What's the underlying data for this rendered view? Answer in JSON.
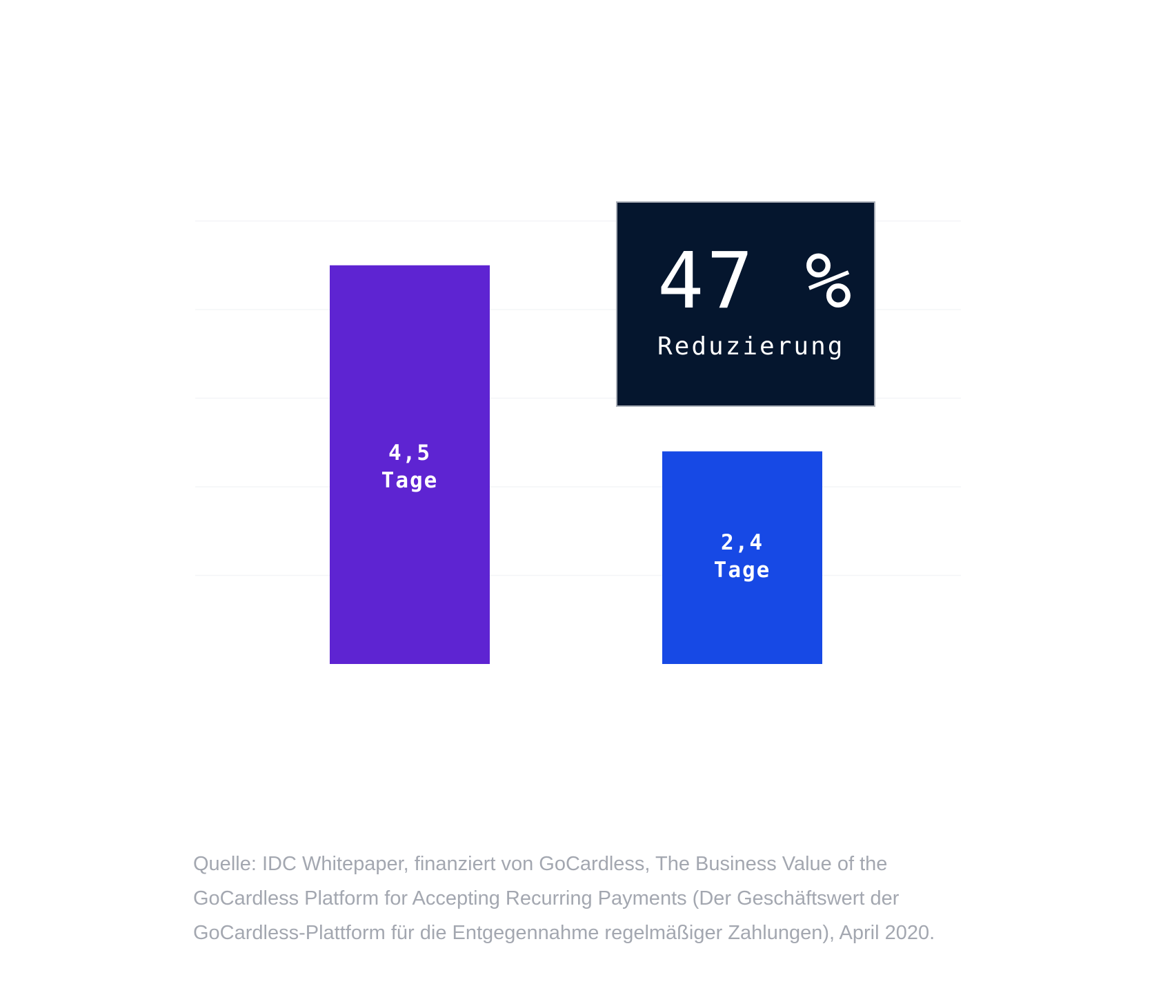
{
  "colors": {
    "background": "#ffffff",
    "grid": "#f4f5f7",
    "callout_background": "#05162e",
    "callout_border": "#a8adb6",
    "label_text": "#ffffff",
    "source_text": "#a3a7b0"
  },
  "chart_data": {
    "type": "bar",
    "categories": [
      "",
      ""
    ],
    "values": [
      4.5,
      2.4
    ],
    "ylim": [
      0,
      5
    ],
    "grid": true,
    "title": "",
    "xlabel": "",
    "ylabel": "",
    "bar_colors": [
      "#5e24d2",
      "#1749e5"
    ],
    "data_labels": [
      {
        "value": "4,5",
        "unit": "Tage"
      },
      {
        "value": "2,4",
        "unit": "Tage"
      }
    ],
    "annotation": {
      "value": "47 %",
      "label": "Reduzierung"
    }
  },
  "source": {
    "line1": "Quelle: IDC Whitepaper, finanziert von GoCardless, The Business Value of the",
    "line2": "GoCardless Platform for Accepting Recurring Payments (Der Geschäftswert der",
    "line3": "GoCardless-Plattform für die Entgegennahme regelmäßiger Zahlungen), April 2020."
  }
}
